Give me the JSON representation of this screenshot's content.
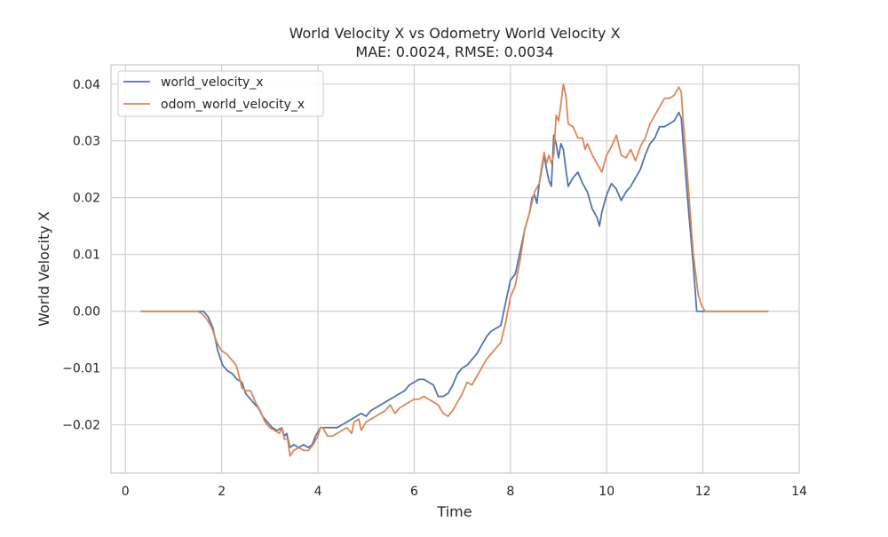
{
  "chart_data": {
    "type": "line",
    "title": "World Velocity X vs Odometry World Velocity X",
    "subtitle": "MAE: 0.0024, RMSE: 0.0034",
    "xlabel": "Time",
    "ylabel": "World Velocity X",
    "xlim": [
      -0.3,
      14.0
    ],
    "ylim": [
      -0.0285,
      0.0434
    ],
    "grid": true,
    "legend_position": "top-left",
    "x_ticks": [
      0,
      2,
      4,
      6,
      8,
      10,
      12,
      14
    ],
    "x_tick_labels": [
      "0",
      "2",
      "4",
      "6",
      "8",
      "10",
      "12",
      "14"
    ],
    "y_ticks": [
      -0.02,
      -0.01,
      0.0,
      0.01,
      0.02,
      0.03,
      0.04
    ],
    "y_tick_labels": [
      "−0.02",
      "−0.01",
      "0.00",
      "0.01",
      "0.02",
      "0.03",
      "0.04"
    ],
    "series": [
      {
        "name": "world_velocity_x",
        "color": "#4c72b0",
        "points": [
          [
            0.33,
            0.0
          ],
          [
            1.0,
            0.0
          ],
          [
            1.5,
            0.0
          ],
          [
            1.62,
            0.0
          ],
          [
            1.72,
            -0.001
          ],
          [
            1.82,
            -0.003
          ],
          [
            1.92,
            -0.007
          ],
          [
            2.02,
            -0.0095
          ],
          [
            2.12,
            -0.0105
          ],
          [
            2.22,
            -0.011
          ],
          [
            2.32,
            -0.012
          ],
          [
            2.42,
            -0.0125
          ],
          [
            2.5,
            -0.0145
          ],
          [
            2.6,
            -0.0155
          ],
          [
            2.7,
            -0.0165
          ],
          [
            2.76,
            -0.017
          ],
          [
            2.85,
            -0.0185
          ],
          [
            2.95,
            -0.0195
          ],
          [
            3.05,
            -0.0205
          ],
          [
            3.15,
            -0.021
          ],
          [
            3.25,
            -0.0205
          ],
          [
            3.3,
            -0.022
          ],
          [
            3.35,
            -0.0215
          ],
          [
            3.42,
            -0.024
          ],
          [
            3.5,
            -0.0235
          ],
          [
            3.6,
            -0.024
          ],
          [
            3.7,
            -0.0235
          ],
          [
            3.8,
            -0.024
          ],
          [
            3.88,
            -0.0235
          ],
          [
            3.95,
            -0.022
          ],
          [
            4.05,
            -0.0205
          ],
          [
            4.12,
            -0.0205
          ],
          [
            4.2,
            -0.0205
          ],
          [
            4.3,
            -0.0205
          ],
          [
            4.4,
            -0.0205
          ],
          [
            4.5,
            -0.02
          ],
          [
            4.6,
            -0.0195
          ],
          [
            4.7,
            -0.019
          ],
          [
            4.8,
            -0.0185
          ],
          [
            4.9,
            -0.018
          ],
          [
            5.0,
            -0.0185
          ],
          [
            5.1,
            -0.0175
          ],
          [
            5.2,
            -0.017
          ],
          [
            5.3,
            -0.0165
          ],
          [
            5.4,
            -0.016
          ],
          [
            5.5,
            -0.0155
          ],
          [
            5.6,
            -0.015
          ],
          [
            5.7,
            -0.0145
          ],
          [
            5.8,
            -0.014
          ],
          [
            5.9,
            -0.013
          ],
          [
            6.0,
            -0.0125
          ],
          [
            6.1,
            -0.012
          ],
          [
            6.2,
            -0.012
          ],
          [
            6.3,
            -0.0125
          ],
          [
            6.4,
            -0.013
          ],
          [
            6.5,
            -0.015
          ],
          [
            6.6,
            -0.015
          ],
          [
            6.7,
            -0.0145
          ],
          [
            6.8,
            -0.013
          ],
          [
            6.9,
            -0.011
          ],
          [
            7.0,
            -0.01
          ],
          [
            7.1,
            -0.0095
          ],
          [
            7.2,
            -0.0085
          ],
          [
            7.3,
            -0.0075
          ],
          [
            7.4,
            -0.006
          ],
          [
            7.5,
            -0.0045
          ],
          [
            7.6,
            -0.0035
          ],
          [
            7.7,
            -0.003
          ],
          [
            7.8,
            -0.0025
          ],
          [
            7.9,
            0.0015
          ],
          [
            8.0,
            0.0055
          ],
          [
            8.1,
            0.0065
          ],
          [
            8.2,
            0.0105
          ],
          [
            8.3,
            0.0145
          ],
          [
            8.4,
            0.0175
          ],
          [
            8.45,
            0.02
          ],
          [
            8.5,
            0.0205
          ],
          [
            8.55,
            0.019
          ],
          [
            8.6,
            0.0225
          ],
          [
            8.65,
            0.025
          ],
          [
            8.7,
            0.0275
          ],
          [
            8.75,
            0.025
          ],
          [
            8.8,
            0.023
          ],
          [
            8.85,
            0.022
          ],
          [
            8.9,
            0.031
          ],
          [
            8.95,
            0.0295
          ],
          [
            9.0,
            0.027
          ],
          [
            9.05,
            0.0295
          ],
          [
            9.1,
            0.0285
          ],
          [
            9.15,
            0.025
          ],
          [
            9.2,
            0.022
          ],
          [
            9.3,
            0.0235
          ],
          [
            9.4,
            0.0245
          ],
          [
            9.5,
            0.0225
          ],
          [
            9.6,
            0.021
          ],
          [
            9.7,
            0.018
          ],
          [
            9.8,
            0.0165
          ],
          [
            9.85,
            0.015
          ],
          [
            9.9,
            0.0175
          ],
          [
            10.0,
            0.0205
          ],
          [
            10.1,
            0.0225
          ],
          [
            10.2,
            0.0215
          ],
          [
            10.3,
            0.0195
          ],
          [
            10.4,
            0.021
          ],
          [
            10.5,
            0.022
          ],
          [
            10.6,
            0.0235
          ],
          [
            10.7,
            0.025
          ],
          [
            10.8,
            0.0275
          ],
          [
            10.9,
            0.0295
          ],
          [
            11.0,
            0.0305
          ],
          [
            11.1,
            0.0325
          ],
          [
            11.2,
            0.0325
          ],
          [
            11.3,
            0.033
          ],
          [
            11.4,
            0.0335
          ],
          [
            11.5,
            0.035
          ],
          [
            11.55,
            0.034
          ],
          [
            11.6,
            0.0285
          ],
          [
            11.7,
            0.018
          ],
          [
            11.8,
            0.008
          ],
          [
            11.87,
            0.0
          ],
          [
            12.0,
            0.0
          ],
          [
            12.5,
            0.0
          ],
          [
            13.0,
            0.0
          ],
          [
            13.35,
            0.0
          ]
        ]
      },
      {
        "name": "odom_world_velocity_x",
        "color": "#dd8452",
        "points": [
          [
            0.33,
            0.0
          ],
          [
            1.0,
            0.0
          ],
          [
            1.5,
            0.0
          ],
          [
            1.6,
            -0.0005
          ],
          [
            1.7,
            -0.0015
          ],
          [
            1.8,
            -0.003
          ],
          [
            1.9,
            -0.0055
          ],
          [
            2.0,
            -0.007
          ],
          [
            2.1,
            -0.0075
          ],
          [
            2.2,
            -0.0085
          ],
          [
            2.3,
            -0.0095
          ],
          [
            2.35,
            -0.011
          ],
          [
            2.42,
            -0.0135
          ],
          [
            2.5,
            -0.014
          ],
          [
            2.6,
            -0.014
          ],
          [
            2.7,
            -0.016
          ],
          [
            2.8,
            -0.0175
          ],
          [
            2.9,
            -0.0195
          ],
          [
            3.0,
            -0.0205
          ],
          [
            3.1,
            -0.021
          ],
          [
            3.2,
            -0.0215
          ],
          [
            3.25,
            -0.0205
          ],
          [
            3.3,
            -0.0225
          ],
          [
            3.37,
            -0.0225
          ],
          [
            3.42,
            -0.0255
          ],
          [
            3.5,
            -0.0245
          ],
          [
            3.6,
            -0.024
          ],
          [
            3.7,
            -0.0245
          ],
          [
            3.8,
            -0.0245
          ],
          [
            3.9,
            -0.0235
          ],
          [
            4.0,
            -0.022
          ],
          [
            4.05,
            -0.0205
          ],
          [
            4.1,
            -0.0205
          ],
          [
            4.2,
            -0.022
          ],
          [
            4.3,
            -0.022
          ],
          [
            4.4,
            -0.0215
          ],
          [
            4.5,
            -0.021
          ],
          [
            4.6,
            -0.0205
          ],
          [
            4.7,
            -0.0215
          ],
          [
            4.75,
            -0.0195
          ],
          [
            4.85,
            -0.019
          ],
          [
            4.9,
            -0.021
          ],
          [
            5.0,
            -0.0195
          ],
          [
            5.1,
            -0.019
          ],
          [
            5.2,
            -0.0185
          ],
          [
            5.3,
            -0.018
          ],
          [
            5.4,
            -0.0175
          ],
          [
            5.5,
            -0.0165
          ],
          [
            5.6,
            -0.018
          ],
          [
            5.7,
            -0.017
          ],
          [
            5.8,
            -0.0165
          ],
          [
            5.9,
            -0.016
          ],
          [
            6.0,
            -0.0155
          ],
          [
            6.1,
            -0.0155
          ],
          [
            6.2,
            -0.015
          ],
          [
            6.3,
            -0.0155
          ],
          [
            6.4,
            -0.016
          ],
          [
            6.5,
            -0.0165
          ],
          [
            6.6,
            -0.018
          ],
          [
            6.7,
            -0.0185
          ],
          [
            6.8,
            -0.0175
          ],
          [
            6.9,
            -0.016
          ],
          [
            7.0,
            -0.0145
          ],
          [
            7.1,
            -0.0125
          ],
          [
            7.2,
            -0.013
          ],
          [
            7.3,
            -0.0115
          ],
          [
            7.4,
            -0.01
          ],
          [
            7.5,
            -0.0085
          ],
          [
            7.6,
            -0.0075
          ],
          [
            7.7,
            -0.0065
          ],
          [
            7.8,
            -0.0055
          ],
          [
            7.9,
            -0.002
          ],
          [
            8.0,
            0.0025
          ],
          [
            8.1,
            0.0045
          ],
          [
            8.2,
            0.009
          ],
          [
            8.3,
            0.0145
          ],
          [
            8.4,
            0.0175
          ],
          [
            8.5,
            0.021
          ],
          [
            8.6,
            0.0225
          ],
          [
            8.65,
            0.0255
          ],
          [
            8.7,
            0.028
          ],
          [
            8.75,
            0.026
          ],
          [
            8.8,
            0.0275
          ],
          [
            8.85,
            0.026
          ],
          [
            8.9,
            0.0275
          ],
          [
            8.95,
            0.0345
          ],
          [
            9.0,
            0.0335
          ],
          [
            9.05,
            0.0365
          ],
          [
            9.1,
            0.04
          ],
          [
            9.15,
            0.038
          ],
          [
            9.2,
            0.033
          ],
          [
            9.3,
            0.0325
          ],
          [
            9.4,
            0.0305
          ],
          [
            9.5,
            0.0305
          ],
          [
            9.55,
            0.0285
          ],
          [
            9.6,
            0.0295
          ],
          [
            9.7,
            0.0275
          ],
          [
            9.8,
            0.026
          ],
          [
            9.9,
            0.0245
          ],
          [
            10.0,
            0.0275
          ],
          [
            10.1,
            0.029
          ],
          [
            10.2,
            0.031
          ],
          [
            10.3,
            0.0275
          ],
          [
            10.4,
            0.027
          ],
          [
            10.5,
            0.0285
          ],
          [
            10.6,
            0.0265
          ],
          [
            10.7,
            0.029
          ],
          [
            10.8,
            0.0305
          ],
          [
            10.9,
            0.033
          ],
          [
            11.0,
            0.0345
          ],
          [
            11.1,
            0.036
          ],
          [
            11.2,
            0.0375
          ],
          [
            11.3,
            0.0375
          ],
          [
            11.4,
            0.038
          ],
          [
            11.5,
            0.0395
          ],
          [
            11.55,
            0.0385
          ],
          [
            11.6,
            0.0325
          ],
          [
            11.7,
            0.0215
          ],
          [
            11.8,
            0.01
          ],
          [
            11.9,
            0.003
          ],
          [
            11.97,
            0.001
          ],
          [
            12.05,
            0.0
          ],
          [
            12.5,
            0.0
          ],
          [
            13.0,
            0.0
          ],
          [
            13.35,
            0.0
          ]
        ]
      }
    ]
  }
}
